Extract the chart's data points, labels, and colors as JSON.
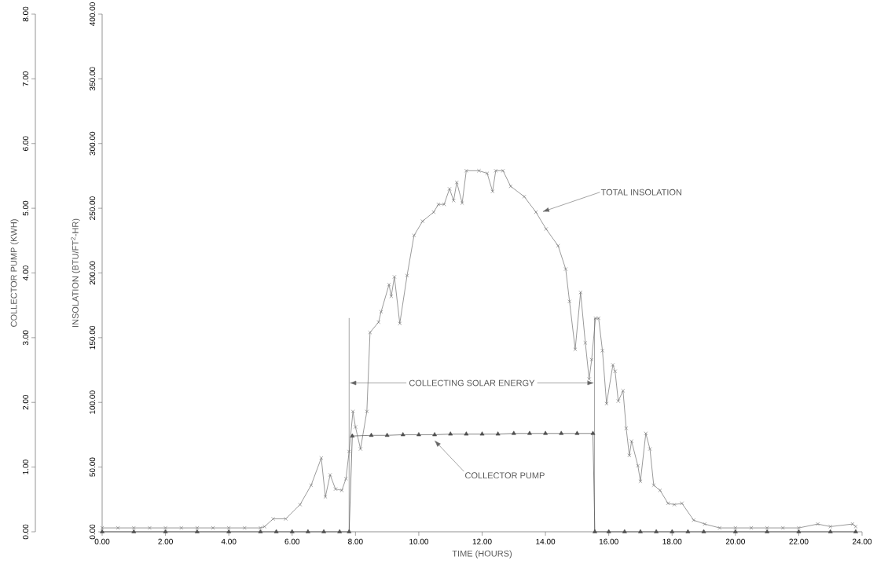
{
  "chart_data": {
    "type": "line",
    "xlabel": "TIME (HOURS)",
    "ylabel": "INSOLATION (BTU/FT$^{2}$-HR)",
    "y2label": "COLLECTOR PUMP (KWH)",
    "xlim": [
      0,
      24
    ],
    "ylim": [
      0,
      400
    ],
    "y2lim": [
      0,
      8
    ],
    "xticks": [
      {
        "value": 0,
        "label": "0.00"
      },
      {
        "value": 2,
        "label": "2.00"
      },
      {
        "value": 4,
        "label": "4.00"
      },
      {
        "value": 6,
        "label": "6.00"
      },
      {
        "value": 8,
        "label": "8.00"
      },
      {
        "value": 10,
        "label": "10.00"
      },
      {
        "value": 12,
        "label": "12.00"
      },
      {
        "value": 14,
        "label": "14.00"
      },
      {
        "value": 16,
        "label": "16.00"
      },
      {
        "value": 18,
        "label": "18.00"
      },
      {
        "value": 20,
        "label": "20.00"
      },
      {
        "value": 22,
        "label": "22.00"
      },
      {
        "value": 24,
        "label": "24.00"
      }
    ],
    "yticks": [
      {
        "value": 0,
        "label": "0.00"
      },
      {
        "value": 50,
        "label": "50.00"
      },
      {
        "value": 100,
        "label": "100.00"
      },
      {
        "value": 150,
        "label": "150.00"
      },
      {
        "value": 200,
        "label": "200.00"
      },
      {
        "value": 250,
        "label": "250.00"
      },
      {
        "value": 300,
        "label": "300.00"
      },
      {
        "value": 350,
        "label": "350.00"
      },
      {
        "value": 400,
        "label": "400.00"
      }
    ],
    "y2ticks": [
      {
        "value": 0,
        "label": "0.00"
      },
      {
        "value": 1,
        "label": "1.00"
      },
      {
        "value": 2,
        "label": "2.00"
      },
      {
        "value": 3,
        "label": "3.00"
      },
      {
        "value": 4,
        "label": "4.00"
      },
      {
        "value": 5,
        "label": "5.00"
      },
      {
        "value": 6,
        "label": "6.00"
      },
      {
        "value": 7,
        "label": "7.00"
      },
      {
        "value": 8,
        "label": "8.00"
      }
    ],
    "series": [
      {
        "color": "#6e6e6e",
        "marker": "cross",
        "x": [
          0,
          0.5,
          1,
          1.5,
          2,
          2.5,
          3,
          3.5,
          4,
          4.5,
          5,
          5.13,
          5.4,
          5.8,
          6.25,
          6.6,
          6.92,
          7.05,
          7.2,
          7.37,
          7.57,
          7.7,
          7.8,
          7.92,
          8.0,
          8.16,
          8.36,
          8.46,
          8.73,
          8.81,
          9.06,
          9.13,
          9.23,
          9.4,
          9.63,
          9.85,
          10.12,
          10.47,
          10.62,
          10.8,
          10.97,
          11.1,
          11.2,
          11.37,
          11.5,
          11.9,
          12.16,
          12.33,
          12.43,
          12.66,
          12.9,
          13.33,
          13.7,
          14.02,
          14.4,
          14.64,
          14.76,
          14.94,
          15.11,
          15.26,
          15.38,
          15.46,
          15.58,
          15.68,
          15.8,
          15.93,
          16.13,
          16.2,
          16.3,
          16.45,
          16.55,
          16.65,
          16.72,
          16.92,
          17.0,
          17.17,
          17.3,
          17.42,
          17.62,
          17.87,
          18.07,
          18.31,
          18.68,
          19.03,
          19.5,
          20,
          20.5,
          21,
          21.5,
          22,
          22.6,
          23,
          23.7,
          23.8
        ],
        "values": [
          3,
          3,
          3,
          3,
          3,
          3,
          3,
          3,
          3,
          3,
          3,
          4,
          10,
          10,
          21,
          36,
          57,
          27,
          44,
          33,
          32,
          41,
          62,
          93,
          81,
          64,
          93,
          154,
          162,
          170,
          191,
          182,
          197,
          161,
          198,
          229,
          240,
          247,
          253,
          253,
          265,
          256,
          270,
          254,
          279,
          279,
          277,
          263,
          279,
          279,
          267,
          259,
          247,
          234,
          221,
          203,
          178,
          141,
          185,
          146,
          118,
          133,
          165,
          165,
          140,
          99,
          129,
          124,
          101,
          109,
          80,
          59,
          70,
          51,
          39,
          76,
          64,
          36,
          32,
          22,
          21,
          22,
          9,
          6,
          3,
          3,
          3,
          3,
          3,
          3,
          6,
          4,
          6,
          4
        ]
      },
      {
        "color": "#505050",
        "marker": "triangle",
        "axis": "y2",
        "x": [
          0,
          1,
          2,
          3,
          4,
          5,
          5.5,
          6,
          6.5,
          7,
          7.5,
          7.8,
          7.9,
          8.5,
          9,
          9.5,
          10,
          10.5,
          11,
          11.5,
          12,
          12.5,
          13,
          13.5,
          14,
          14.5,
          15,
          15.5,
          15.56,
          16,
          16.5,
          17,
          17.5,
          18,
          18.5,
          19,
          20,
          21,
          22,
          23,
          23.8
        ],
        "values": [
          0,
          0,
          0,
          0,
          0,
          0,
          0,
          0,
          0,
          0,
          0,
          0,
          1.48,
          1.49,
          1.49,
          1.5,
          1.5,
          1.5,
          1.51,
          1.51,
          1.51,
          1.51,
          1.52,
          1.52,
          1.52,
          1.52,
          1.52,
          1.52,
          0,
          0,
          0,
          0,
          0,
          0,
          0,
          0,
          0,
          0,
          0,
          0,
          0
        ]
      }
    ],
    "ref_lines": [
      {
        "axis": "x",
        "value": 7.8
      },
      {
        "axis": "x",
        "value": 15.55
      }
    ],
    "annotations": [
      "TOTAL INSOLATION",
      "COLLECTOR PUMP",
      {
        "text": "COLLECTING SOLAR ENERGY",
        "x": 7.8,
        "y": 115
      }
    ],
    "line_style": "solid"
  }
}
